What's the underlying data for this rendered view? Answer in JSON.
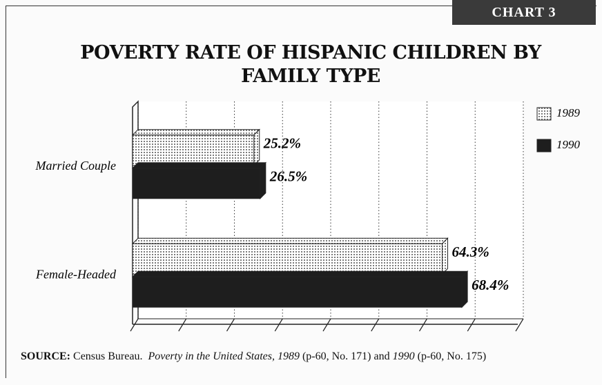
{
  "chart_data": {
    "type": "hbar",
    "badge": "CHART 3",
    "title": "POVERTY RATE OF HISPANIC CHILDREN BY FAMILY TYPE",
    "categories": [
      "Married Couple",
      "Female-Headed"
    ],
    "series": [
      {
        "name": "1989",
        "color": "#7a7a7a",
        "values": [
          25.2,
          64.3
        ],
        "value_labels": [
          "25.2%",
          "64.3%"
        ]
      },
      {
        "name": "1990",
        "color": "#1e1e1e",
        "values": [
          26.5,
          68.4
        ],
        "value_labels": [
          "26.5%",
          "68.4%"
        ]
      }
    ],
    "xlim": [
      0,
      80
    ],
    "xticks": [
      0,
      10,
      20,
      30,
      40,
      50,
      60,
      70,
      80
    ],
    "grid": true,
    "legend": "right",
    "source": {
      "label": "SOURCE:",
      "text1": "Census Bureau.",
      "title": "Poverty in the United States, 1989",
      "text2": "(p-60, No. 171) and",
      "year": "1990",
      "text3": "(p-60, No. 175)"
    }
  }
}
